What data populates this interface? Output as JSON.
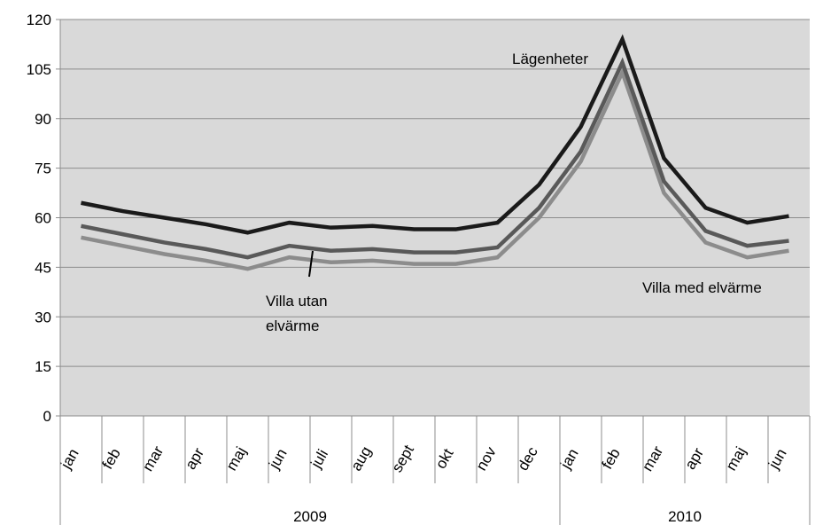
{
  "chart_data": {
    "type": "line",
    "categories": [
      "jan",
      "feb",
      "mar",
      "apr",
      "maj",
      "jun",
      "juli",
      "aug",
      "sept",
      "okt",
      "nov",
      "dec",
      "jan",
      "feb",
      "mar",
      "apr",
      "maj",
      "jun"
    ],
    "x_groups": [
      {
        "label": "2009",
        "count": 12
      },
      {
        "label": "2010",
        "count": 6
      }
    ],
    "series": [
      {
        "name": "Lägenheter",
        "color": "#1a1a1a",
        "values": [
          64.5,
          62,
          60,
          58,
          55.5,
          58.5,
          57,
          57.5,
          56.5,
          56.5,
          58.5,
          70,
          87.5,
          114,
          78,
          63,
          58.5,
          60.5
        ]
      },
      {
        "name": "Villa utan elvärme",
        "color": "#595959",
        "values": [
          57.5,
          55,
          52.5,
          50.5,
          48,
          51.5,
          50,
          50.5,
          49.5,
          49.5,
          51,
          63,
          80,
          107,
          71,
          56,
          51.5,
          53
        ]
      },
      {
        "name": "Villa med elvärme",
        "color": "#8c8c8c",
        "values": [
          54,
          51.5,
          49,
          47,
          44.5,
          48,
          46.5,
          47,
          46,
          46,
          48,
          60,
          77,
          104,
          67.5,
          52.5,
          48,
          50
        ]
      }
    ],
    "ylim": [
      0,
      120
    ],
    "yticks": [
      0,
      15,
      30,
      45,
      60,
      75,
      90,
      105,
      120
    ],
    "grid": true
  }
}
